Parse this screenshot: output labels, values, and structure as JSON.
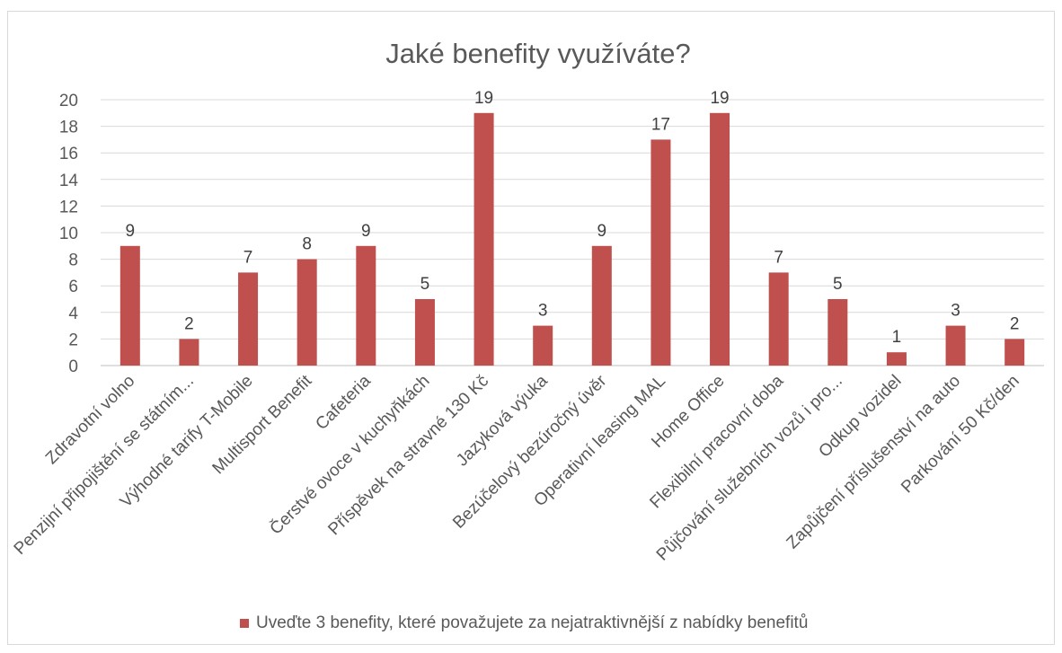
{
  "chart_data": {
    "type": "bar",
    "title": "Jaké benefity využíváte?",
    "xlabel": "",
    "ylabel": "",
    "ylim": [
      0,
      20
    ],
    "y_ticks": [
      0,
      2,
      4,
      6,
      8,
      10,
      12,
      14,
      16,
      18,
      20
    ],
    "grid": true,
    "legend_position": "bottom",
    "categories": [
      "Zdravotní volno",
      "Penzijní připojištění se státním...",
      "Výhodné tarify T-Mobile",
      "Multisport Benefit",
      "Cafeteria",
      "Čerstvé ovoce v kuchyňkách",
      "Příspěvek na stravné 130 Kč",
      "Jazyková výuka",
      "Bezúčelový bezúročný úvěr",
      "Operativní leasing MAL",
      "Home Office",
      "Flexibilní pracovní doba",
      "Půjčování služebních vozů i pro...",
      "Odkup vozidel",
      "Zapůjčení příslušenství na auto",
      "Parkování 50 Kč/den"
    ],
    "series": [
      {
        "name": "Uveďte 3 benefity, které považujete za nejatraktivnější z nabídky benefitů",
        "values": [
          9,
          2,
          7,
          8,
          9,
          5,
          19,
          3,
          9,
          17,
          19,
          7,
          5,
          1,
          3,
          2
        ],
        "color": "#c0504d"
      }
    ],
    "data_labels": true
  }
}
